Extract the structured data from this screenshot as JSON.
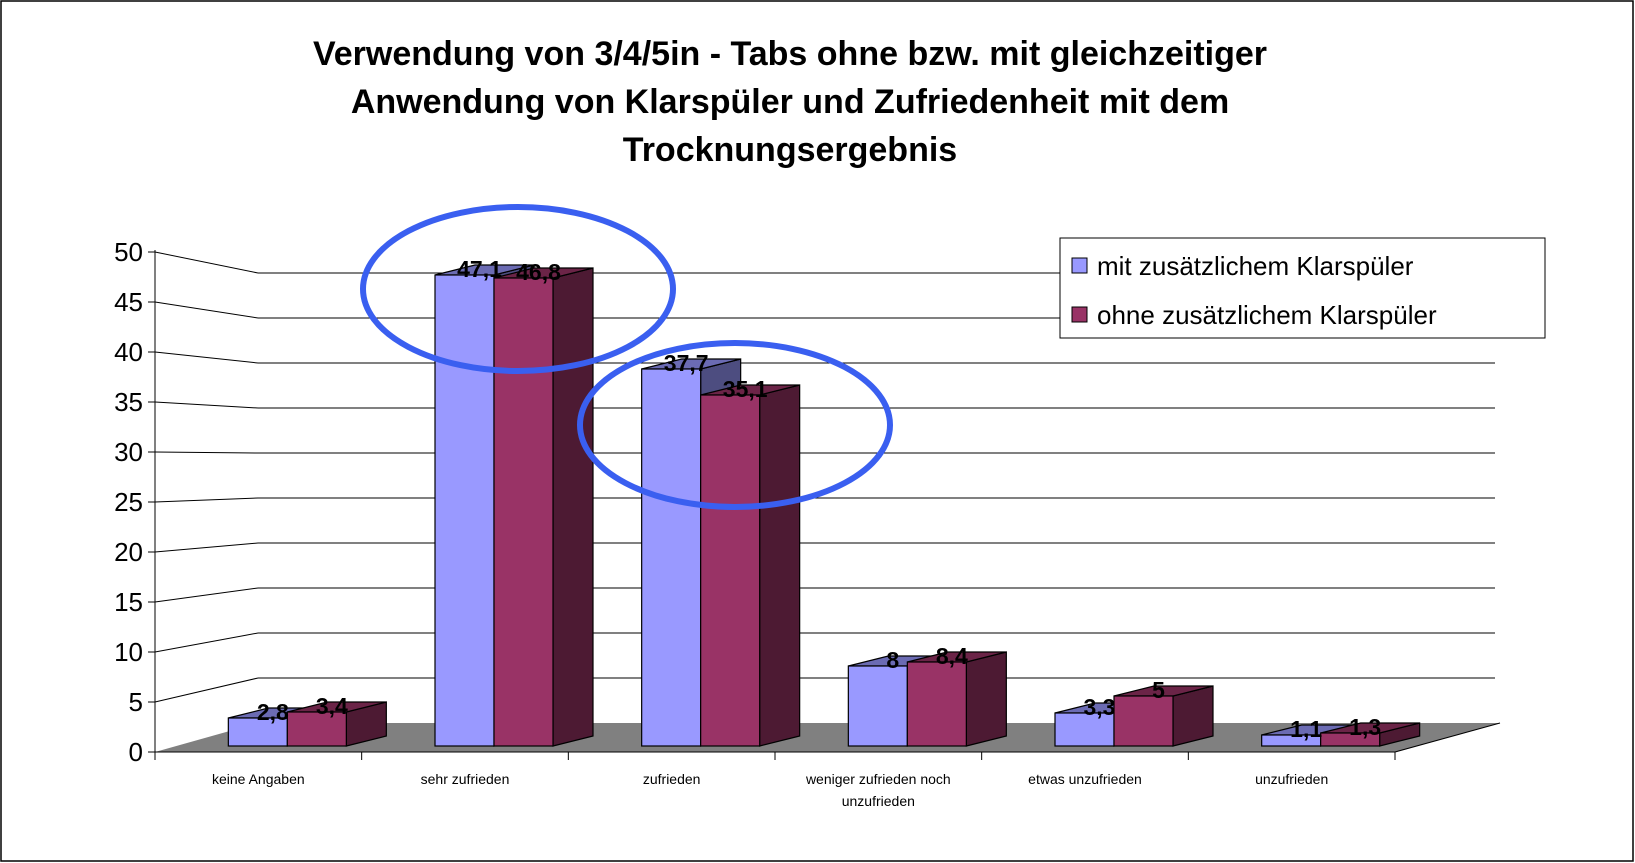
{
  "chart_data": {
    "type": "bar3d",
    "title": "Verwendung von 3/4/5in - Tabs ohne bzw. mit gleichzeitiger Anwendung von Klarspüler und Zufriedenheit mit dem Trocknungsergebnis",
    "categories": [
      "keine Angaben",
      "sehr zufrieden",
      "zufrieden",
      "weniger zufrieden noch unzufrieden",
      "etwas unzufrieden",
      "unzufrieden"
    ],
    "series": [
      {
        "name": "mit zusätzlichem Klarspüler",
        "color": "#9999ff",
        "values": [
          2.8,
          47.1,
          37.7,
          8,
          3.3,
          1.1
        ],
        "value_labels": [
          "2,8",
          "47,1",
          "37,7",
          "8",
          "3,3",
          "1,1"
        ]
      },
      {
        "name": "ohne zusätzlichem Klarspüler",
        "color": "#993366",
        "values": [
          3.4,
          46.8,
          35.1,
          8.4,
          5,
          1.3
        ],
        "value_labels": [
          "3,4",
          "46,8",
          "35,1",
          "8,4",
          "5",
          "1,3"
        ]
      }
    ],
    "ylim": [
      0,
      50
    ],
    "yticks": [
      0,
      5,
      10,
      15,
      20,
      25,
      30,
      35,
      40,
      45,
      50
    ],
    "grid": true,
    "legend": "top-right"
  }
}
